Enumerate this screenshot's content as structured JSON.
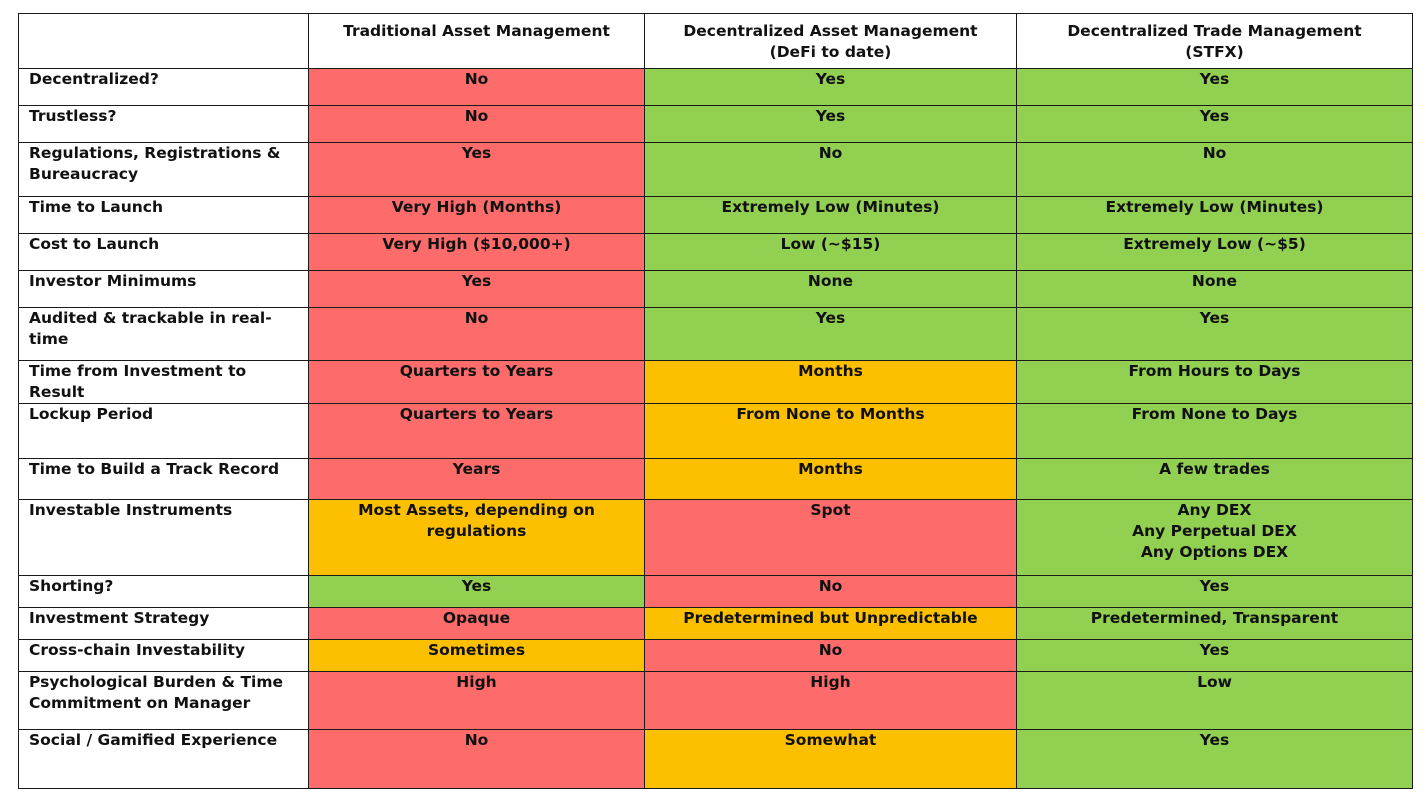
{
  "colors": {
    "red": "#fd6c6b",
    "green": "#92d051",
    "orange": "#fdc000",
    "header_bg": "#ffffff",
    "border": "#1a1a1a"
  },
  "header": {
    "col1": [
      "Traditional Asset Management"
    ],
    "col2": [
      "Decentralized Asset Management",
      "(DeFi to date)"
    ],
    "col3": [
      "Decentralized Trade Management",
      "(STFX)"
    ]
  },
  "rows": [
    {
      "label": [
        "Decentralized?"
      ],
      "cells": [
        {
          "text": [
            "No"
          ],
          "color": "red"
        },
        {
          "text": [
            "Yes"
          ],
          "color": "green"
        },
        {
          "text": [
            "Yes"
          ],
          "color": "green"
        }
      ]
    },
    {
      "label": [
        "Trustless?"
      ],
      "cells": [
        {
          "text": [
            "No"
          ],
          "color": "red"
        },
        {
          "text": [
            "Yes"
          ],
          "color": "green"
        },
        {
          "text": [
            "Yes"
          ],
          "color": "green"
        }
      ]
    },
    {
      "label": [
        "Regulations, Registrations &",
        "Bureaucracy"
      ],
      "cells": [
        {
          "text": [
            "Yes"
          ],
          "color": "red"
        },
        {
          "text": [
            "No"
          ],
          "color": "green"
        },
        {
          "text": [
            "No"
          ],
          "color": "green"
        }
      ]
    },
    {
      "label": [
        "Time to Launch"
      ],
      "cells": [
        {
          "text": [
            "Very High (Months)"
          ],
          "color": "red"
        },
        {
          "text": [
            "Extremely Low (Minutes)"
          ],
          "color": "green"
        },
        {
          "text": [
            "Extremely Low (Minutes)"
          ],
          "color": "green"
        }
      ]
    },
    {
      "label": [
        "Cost to Launch"
      ],
      "cells": [
        {
          "text": [
            "Very High ($10,000+)"
          ],
          "color": "red"
        },
        {
          "text": [
            "Low (~$15)"
          ],
          "color": "green"
        },
        {
          "text": [
            "Extremely Low (~$5)"
          ],
          "color": "green"
        }
      ]
    },
    {
      "label": [
        "Investor Minimums"
      ],
      "cells": [
        {
          "text": [
            "Yes"
          ],
          "color": "red"
        },
        {
          "text": [
            "None"
          ],
          "color": "green"
        },
        {
          "text": [
            "None"
          ],
          "color": "green"
        }
      ]
    },
    {
      "label": [
        "Audited & trackable in real-",
        "time"
      ],
      "cells": [
        {
          "text": [
            "No"
          ],
          "color": "red"
        },
        {
          "text": [
            "Yes"
          ],
          "color": "green"
        },
        {
          "text": [
            "Yes"
          ],
          "color": "green"
        }
      ]
    },
    {
      "label": [
        "Time from Investment to Result"
      ],
      "cells": [
        {
          "text": [
            "Quarters to Years"
          ],
          "color": "red"
        },
        {
          "text": [
            "Months"
          ],
          "color": "orange"
        },
        {
          "text": [
            "From Hours to Days"
          ],
          "color": "green"
        }
      ]
    },
    {
      "label": [
        "Lockup Period"
      ],
      "cells": [
        {
          "text": [
            "Quarters to Years"
          ],
          "color": "red"
        },
        {
          "text": [
            "From None to Months"
          ],
          "color": "orange"
        },
        {
          "text": [
            "From None to Days"
          ],
          "color": "green"
        }
      ]
    },
    {
      "label": [
        "Time to Build a Track Record"
      ],
      "cells": [
        {
          "text": [
            "Years"
          ],
          "color": "red"
        },
        {
          "text": [
            "Months"
          ],
          "color": "orange"
        },
        {
          "text": [
            "A few trades"
          ],
          "color": "green"
        }
      ]
    },
    {
      "label": [
        "Investable Instruments"
      ],
      "cells": [
        {
          "text": [
            "Most Assets, depending on",
            "regulations"
          ],
          "color": "orange"
        },
        {
          "text": [
            "Spot"
          ],
          "color": "red"
        },
        {
          "text": [
            "Any DEX",
            "Any Perpetual DEX",
            "Any Options DEX"
          ],
          "color": "green"
        }
      ]
    },
    {
      "label": [
        "Shorting?"
      ],
      "cells": [
        {
          "text": [
            "Yes"
          ],
          "color": "green"
        },
        {
          "text": [
            "No"
          ],
          "color": "red"
        },
        {
          "text": [
            "Yes"
          ],
          "color": "green"
        }
      ]
    },
    {
      "label": [
        "Investment Strategy"
      ],
      "cells": [
        {
          "text": [
            "Opaque"
          ],
          "color": "red"
        },
        {
          "text": [
            "Predetermined but Unpredictable"
          ],
          "color": "orange"
        },
        {
          "text": [
            "Predetermined, Transparent"
          ],
          "color": "green"
        }
      ]
    },
    {
      "label": [
        "Cross-chain Investability"
      ],
      "cells": [
        {
          "text": [
            "Sometimes"
          ],
          "color": "orange"
        },
        {
          "text": [
            "No"
          ],
          "color": "red"
        },
        {
          "text": [
            "Yes"
          ],
          "color": "green"
        }
      ]
    },
    {
      "label": [
        "Psychological Burden & Time",
        "Commitment on Manager"
      ],
      "cells": [
        {
          "text": [
            "High"
          ],
          "color": "red"
        },
        {
          "text": [
            "High"
          ],
          "color": "red"
        },
        {
          "text": [
            "Low"
          ],
          "color": "green"
        }
      ]
    },
    {
      "label": [
        "Social / Gamified Experience"
      ],
      "cells": [
        {
          "text": [
            "No"
          ],
          "color": "red"
        },
        {
          "text": [
            "Somewhat"
          ],
          "color": "orange"
        },
        {
          "text": [
            "Yes"
          ],
          "color": "green"
        }
      ]
    }
  ]
}
